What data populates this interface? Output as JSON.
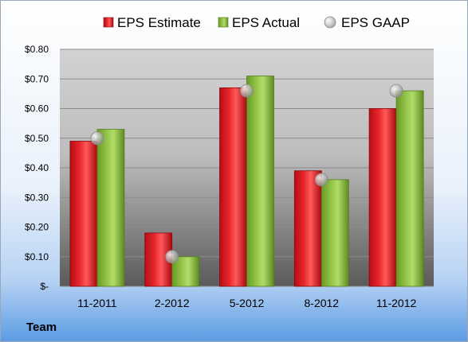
{
  "chart_data": {
    "type": "bar",
    "categories": [
      "11-2011",
      "2-2012",
      "5-2012",
      "8-2012",
      "11-2012"
    ],
    "series": [
      {
        "name": "EPS Estimate",
        "kind": "bar",
        "color": "#e2141c",
        "values": [
          0.49,
          0.18,
          0.67,
          0.39,
          0.6
        ]
      },
      {
        "name": "EPS Actual",
        "kind": "bar",
        "color": "#8cbc3c",
        "values": [
          0.53,
          0.1,
          0.71,
          0.36,
          0.66
        ]
      },
      {
        "name": "EPS GAAP",
        "kind": "marker",
        "color": "#b8b8b8",
        "values": [
          0.5,
          0.1,
          0.66,
          0.36,
          0.66
        ]
      }
    ],
    "yticks": [
      "$-",
      "$0.10",
      "$0.20",
      "$0.30",
      "$0.40",
      "$0.50",
      "$0.60",
      "$0.70",
      "$0.80"
    ],
    "ylim": [
      0,
      0.8
    ],
    "grid": true,
    "legend_position": "top"
  },
  "footer": {
    "label": "Team"
  },
  "colors": {
    "background_top": "#ffffff",
    "background_bottom": "#5b9be3",
    "plot_top": "#cfcfcf",
    "plot_bottom": "#5e5e5e"
  }
}
